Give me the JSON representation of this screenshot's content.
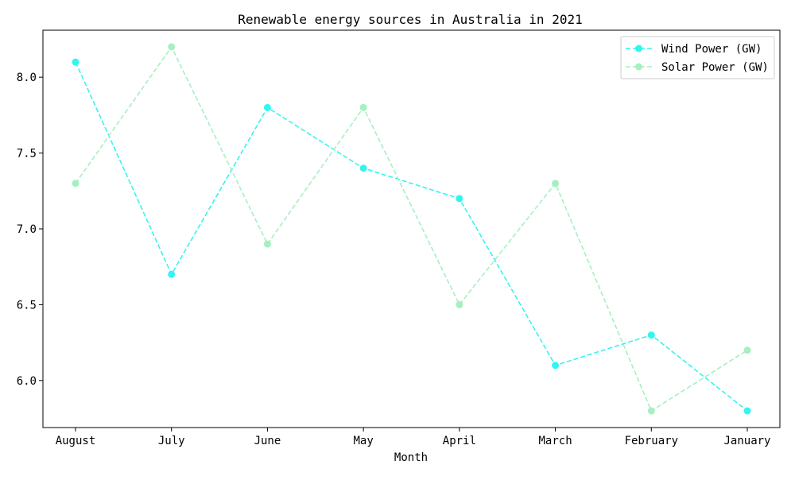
{
  "chart_data": {
    "type": "line",
    "title": "Renewable energy sources in Australia in 2021",
    "xlabel": "Month",
    "ylabel": "",
    "categories": [
      "August",
      "July",
      "June",
      "May",
      "April",
      "March",
      "February",
      "January"
    ],
    "series": [
      {
        "name": "Wind Power (GW)",
        "color": "#33f5f0",
        "line_style": "dashed",
        "marker": "circle",
        "values": [
          8.1,
          6.7,
          7.8,
          7.4,
          7.2,
          6.1,
          6.3,
          5.8
        ]
      },
      {
        "name": "Solar Power (GW)",
        "color": "#a6f0c0",
        "line_style": "dashed",
        "marker": "circle",
        "values": [
          7.3,
          8.2,
          6.9,
          7.8,
          6.5,
          7.3,
          5.8,
          6.2
        ]
      }
    ],
    "ylim": [
      5.69,
      8.31
    ],
    "yticks": [
      "6.0",
      "6.5",
      "7.0",
      "7.5",
      "8.0"
    ],
    "grid": false,
    "legend_position": "top-right"
  }
}
